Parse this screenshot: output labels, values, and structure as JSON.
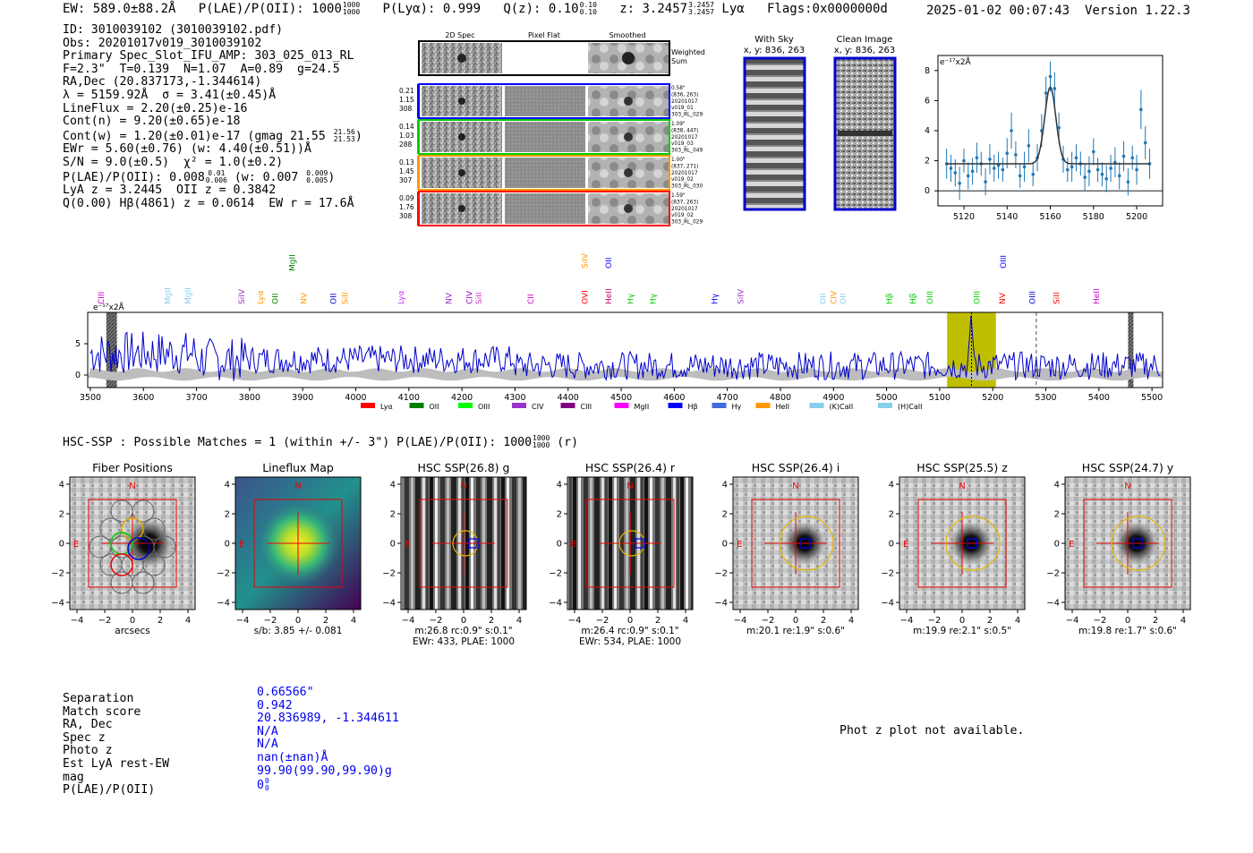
{
  "header": {
    "ew_text": "EW: 589.0±88.2Å",
    "plae_label": "P(LAE)/P(OII): 1000",
    "plae_hi": "1000",
    "plae_lo": "1000",
    "plya": "P(Lyα): 0.999",
    "qz_label": "Q(z): 0.10",
    "qz_hi": "0.10",
    "qz_lo": "0.10",
    "z_label": "z: 3.2457",
    "z_hi": "3.2457",
    "z_lo": "3.2457",
    "line": "Lyα",
    "flags": "Flags:0x0000000d",
    "datetime": "2025-01-02 00:07:43",
    "version": "Version 1.22.3"
  },
  "info": {
    "id": "ID: 3010039102 (3010039102.pdf)",
    "obs": "Obs: 20201017v019_3010039102",
    "primary": "Primary Spec_Slot_IFU_AMP: 303_025_013_RL",
    "fwhm": "F=2.3\"  T=0.139  N=1.07  A=0.89  g=24.5",
    "radec": "RA,Dec (20.837173,-1.344614)",
    "lambda": "λ = 5159.92Å  σ = 3.41(±0.45)Å",
    "lineflux": "LineFlux = 2.20(±0.25)e-16",
    "contn": "Cont(n) = 9.20(±0.65)e-18",
    "contw": "Cont(w) = 1.20(±0.01)e-17 (gmag 21.55",
    "contw_hi": "21.56",
    "contw_lo": "21.53",
    "contw_end": ")",
    "ewr": "EWr = 5.60(±0.76) (w: 4.40(±0.51))Å",
    "sn": "S/N = 9.0(±0.5)  χ² = 1.0(±0.2)",
    "plae": "P(LAE)/P(OII): 0.008",
    "plae_hi": "0.01",
    "plae_lo": "0.006",
    "plae_w": "(w: 0.007",
    "plae_w_hi": "0.009",
    "plae_w_lo": "0.005",
    "plae_end": ")",
    "lya": "LyA z = 3.2445  OII z = 0.3842",
    "q0": "Q(0.00) Hβ(4861) z = 0.0614  EW r = 17.6Å"
  },
  "cutouts": {
    "col_labels": [
      "2D Spec",
      "Pixel Flat",
      "Smoothed"
    ],
    "weighted": "Weighted Sum",
    "rows": [
      {
        "left": [
          "0.21",
          "1.15",
          "308"
        ],
        "right": [
          "0.58\"",
          "(836, 263)",
          "20201017",
          "v019_01",
          "303_RL_029"
        ],
        "color": "#0000ff"
      },
      {
        "left": [
          "0.14",
          "1.03",
          "288"
        ],
        "right": [
          "1.09\"",
          "(838, 447)",
          "20201017",
          "v019_03",
          "303_RL_049"
        ],
        "color": "#00cc00"
      },
      {
        "left": [
          "0.13",
          "1.45",
          "307"
        ],
        "right": [
          "1.00\"",
          "(837, 271)",
          "20201017",
          "v019_02",
          "303_RL_030"
        ],
        "color": "#ff9900"
      },
      {
        "left": [
          "0.09",
          "1.76",
          "308"
        ],
        "right": [
          "1.59\"",
          "(837, 263)",
          "20201017",
          "v019_02",
          "303_RL_029"
        ],
        "color": "#ff0000"
      }
    ]
  },
  "sky": {
    "with_sky_title": "With Sky",
    "with_sky_xy": "x, y: 836, 263",
    "clean_title": "Clean Image",
    "clean_xy": "x, y: 836, 263"
  },
  "chart_data": [
    {
      "type": "line",
      "title": "",
      "ylabel": "e⁻¹⁷x2Å",
      "xlim": [
        5108,
        5212
      ],
      "ylim": [
        -1,
        9
      ],
      "xticks": [
        5120,
        5140,
        5160,
        5180,
        5200
      ],
      "yticks": [
        0,
        2,
        4,
        6,
        8
      ],
      "points": [
        [
          5112,
          1.8
        ],
        [
          5114,
          1.5
        ],
        [
          5116,
          1.2
        ],
        [
          5118,
          0.5
        ],
        [
          5120,
          2.0
        ],
        [
          5122,
          1.0
        ],
        [
          5124,
          1.3
        ],
        [
          5126,
          2.2
        ],
        [
          5128,
          1.8
        ],
        [
          5130,
          0.6
        ],
        [
          5132,
          2.1
        ],
        [
          5134,
          1.5
        ],
        [
          5136,
          1.7
        ],
        [
          5138,
          1.4
        ],
        [
          5140,
          2.5
        ],
        [
          5142,
          4.0
        ],
        [
          5144,
          2.4
        ],
        [
          5146,
          1.0
        ],
        [
          5148,
          1.6
        ],
        [
          5150,
          3.0
        ],
        [
          5152,
          1.1
        ],
        [
          5154,
          2.2
        ],
        [
          5156,
          4.0
        ],
        [
          5158,
          6.5
        ],
        [
          5160,
          7.6
        ],
        [
          5162,
          6.8
        ],
        [
          5164,
          4.2
        ],
        [
          5166,
          2.1
        ],
        [
          5168,
          1.4
        ],
        [
          5170,
          1.6
        ],
        [
          5172,
          2.2
        ],
        [
          5174,
          1.8
        ],
        [
          5176,
          0.9
        ],
        [
          5178,
          1.3
        ],
        [
          5180,
          2.6
        ],
        [
          5182,
          1.4
        ],
        [
          5184,
          1.1
        ],
        [
          5186,
          0.8
        ],
        [
          5188,
          1.5
        ],
        [
          5190,
          1.9
        ],
        [
          5192,
          1.0
        ],
        [
          5194,
          2.3
        ],
        [
          5196,
          0.6
        ],
        [
          5198,
          2.2
        ],
        [
          5200,
          1.4
        ],
        [
          5202,
          5.4
        ],
        [
          5204,
          3.2
        ],
        [
          5206,
          1.8
        ]
      ],
      "errors": [
        1.0,
        0.9,
        0.9,
        1.1,
        0.8,
        0.9,
        0.9,
        1.0,
        0.8,
        0.9,
        1.0,
        0.9,
        0.9,
        0.8,
        1.0,
        1.2,
        0.9,
        0.8,
        1.0,
        1.1,
        0.8,
        0.9,
        1.1,
        1.1,
        1.0,
        1.1,
        1.0,
        0.9,
        0.8,
        1.0,
        0.9,
        0.8,
        0.9,
        1.0,
        0.9,
        0.8,
        0.8,
        0.9,
        0.9,
        1.0,
        0.9,
        1.0,
        0.9,
        0.8,
        1.0,
        1.3,
        1.1,
        1.0
      ],
      "model": {
        "continuum": 1.8,
        "peak": 6.9,
        "center": 5160,
        "sigma": 2.6
      }
    },
    {
      "type": "line",
      "title": "",
      "ylabel": "e⁻¹⁷x2Å",
      "xlim": [
        3495,
        5520
      ],
      "ylim": [
        -2,
        10
      ],
      "xticks": [
        3500,
        3600,
        3700,
        3800,
        3900,
        4000,
        4100,
        4200,
        4300,
        4400,
        4500,
        4600,
        4700,
        4800,
        4900,
        5000,
        5100,
        5200,
        5300,
        5400,
        5500
      ],
      "yticks": [
        0,
        5
      ],
      "highlight": [
        5114,
        5206
      ],
      "emission_line": 5160,
      "dashed_line": 5282,
      "masked": [
        [
          3530,
          3550
        ],
        [
          5455,
          5465
        ]
      ],
      "line_markers": [
        {
          "label": "CIII",
          "x": 3520,
          "c": "#cc00cc",
          "lvl": 0
        },
        {
          "label": "MgII",
          "x": 3646,
          "c": "#87ceeb",
          "lvl": 0
        },
        {
          "label": "MgII",
          "x": 3684,
          "c": "#87ceeb",
          "lvl": 0
        },
        {
          "label": "SiIV",
          "x": 3785,
          "c": "#9933cc",
          "lvl": 0
        },
        {
          "label": "Lyα",
          "x": 3820,
          "c": "#ff9900",
          "lvl": 0
        },
        {
          "label": "OII",
          "x": 3848,
          "c": "#008000",
          "lvl": 0
        },
        {
          "label": "MgII",
          "x": 3880,
          "c": "#008000",
          "lvl": 1
        },
        {
          "label": "NV",
          "x": 3902,
          "c": "#ff9900",
          "lvl": 0
        },
        {
          "label": "OII",
          "x": 3958,
          "c": "#0000cc",
          "lvl": 0
        },
        {
          "label": "SiII",
          "x": 3980,
          "c": "#ff9900",
          "lvl": 0
        },
        {
          "label": "Lyα",
          "x": 4085,
          "c": "#cc33ff",
          "lvl": 0
        },
        {
          "label": "NV",
          "x": 4175,
          "c": "#9933cc",
          "lvl": 0
        },
        {
          "label": "CIV",
          "x": 4214,
          "c": "#9900cc",
          "lvl": 0
        },
        {
          "label": "SiII",
          "x": 4232,
          "c": "#cc33cc",
          "lvl": 0
        },
        {
          "label": "CII",
          "x": 4330,
          "c": "#cc00cc",
          "lvl": 0
        },
        {
          "label": "OVI",
          "x": 4432,
          "c": "#ff0000",
          "lvl": 0
        },
        {
          "label": "SiIV",
          "x": 4432,
          "c": "#ff9900",
          "lvl": 2
        },
        {
          "label": "HeII",
          "x": 4476,
          "c": "#cc0066",
          "lvl": 0
        },
        {
          "label": "OII",
          "x": 4476,
          "c": "#0000ff",
          "lvl": 2
        },
        {
          "label": "Hγ",
          "x": 4518,
          "c": "#00cc00",
          "lvl": 0
        },
        {
          "label": "Hγ",
          "x": 4560,
          "c": "#00cc00",
          "lvl": 0
        },
        {
          "label": "Hγ",
          "x": 4676,
          "c": "#0000ff",
          "lvl": 0
        },
        {
          "label": "SiIV",
          "x": 4725,
          "c": "#9933cc",
          "lvl": 0
        },
        {
          "label": "OII",
          "x": 4880,
          "c": "#87ceeb",
          "lvl": 0
        },
        {
          "label": "CIV",
          "x": 4900,
          "c": "#ff9900",
          "lvl": 0
        },
        {
          "label": "OII",
          "x": 4918,
          "c": "#87ceeb",
          "lvl": 0
        },
        {
          "label": "Hβ",
          "x": 5005,
          "c": "#00cc00",
          "lvl": 0
        },
        {
          "label": "Hβ",
          "x": 5050,
          "c": "#00cc00",
          "lvl": 0
        },
        {
          "label": "OIII",
          "x": 5082,
          "c": "#00cc00",
          "lvl": 0
        },
        {
          "label": "OIII",
          "x": 5170,
          "c": "#00cc00",
          "lvl": 0
        },
        {
          "label": "NV",
          "x": 5218,
          "c": "#ff0000",
          "lvl": 0
        },
        {
          "label": "OIII",
          "x": 5220,
          "c": "#0000ff",
          "lvl": 2
        },
        {
          "label": "OIII",
          "x": 5275,
          "c": "#0000cc",
          "lvl": 0
        },
        {
          "label": "SiII",
          "x": 5320,
          "c": "#ff0000",
          "lvl": 0
        },
        {
          "label": "HeII",
          "x": 5395,
          "c": "#cc00cc",
          "lvl": 0
        }
      ],
      "legend": [
        {
          "label": "Lyα",
          "c": "#ff0000"
        },
        {
          "label": "OII",
          "c": "#008000"
        },
        {
          "label": "OIII",
          "c": "#00ff00"
        },
        {
          "label": "CIV",
          "c": "#9933cc"
        },
        {
          "label": "CIII",
          "c": "#800080"
        },
        {
          "label": "MgII",
          "c": "#ff00ff"
        },
        {
          "label": "Hβ",
          "c": "#0000ff"
        },
        {
          "label": "Hγ",
          "c": "#4169e1"
        },
        {
          "label": "HeII",
          "c": "#ff9900"
        },
        {
          "label": "(K)CaII",
          "c": "#87ceeb"
        },
        {
          "label": "(H)CaII",
          "c": "#87ceeb"
        }
      ]
    }
  ],
  "hsc": {
    "title": "HSC-SSP : Possible Matches = 1 (within +/- 3\")  P(LAE)/P(OII): 1000",
    "title_hi": "1000",
    "title_lo": "1000",
    "title_end": "(r)",
    "panels": [
      {
        "title": "Fiber Positions",
        "caption": [
          "arcsecs"
        ]
      },
      {
        "title": "Lineflux Map",
        "caption": [
          "s/b: 3.85 +/- 0.081"
        ]
      },
      {
        "title": "HSC SSP(26.8) g",
        "caption": [
          "m:26.8 rc:0.9\"  s:0.1\"",
          "EWr: 433, PLAE: 1000"
        ]
      },
      {
        "title": "HSC SSP(26.4) r",
        "caption": [
          "m:26.4 rc:0.9\"  s:0.1\"",
          "EWr: 534, PLAE: 1000"
        ]
      },
      {
        "title": "HSC SSP(26.4) i",
        "caption": [
          "m:20.1  re:1.9\"  s:0.6\""
        ]
      },
      {
        "title": "HSC SSP(25.5) z",
        "caption": [
          "m:19.9  re:2.1\"  s:0.5\""
        ]
      },
      {
        "title": "HSC SSP(24.7) y",
        "caption": [
          "m:19.8  re:1.7\"  s:0.6\""
        ]
      }
    ],
    "ticks": [
      "4",
      "2",
      "0",
      "−2",
      "−4"
    ],
    "xticks": [
      "−4",
      "−2",
      "0",
      "2",
      "4"
    ],
    "n_label": "N",
    "e_label": "E"
  },
  "match": {
    "keys": [
      "Separation",
      "Match score",
      "RA, Dec",
      "Spec z",
      "Photo z",
      "Est LyA rest-EW",
      "mag",
      "P(LAE)/P(OII)"
    ],
    "vals": [
      "0.66566\"",
      "0.942",
      "20.836989, -1.344611",
      "N/A",
      "N/A",
      "nan(±nan)Å",
      "99.90(99.90,99.90)g",
      "0"
    ],
    "plae_hi": "0",
    "plae_lo": "0"
  },
  "photz": "Phot z plot not available."
}
